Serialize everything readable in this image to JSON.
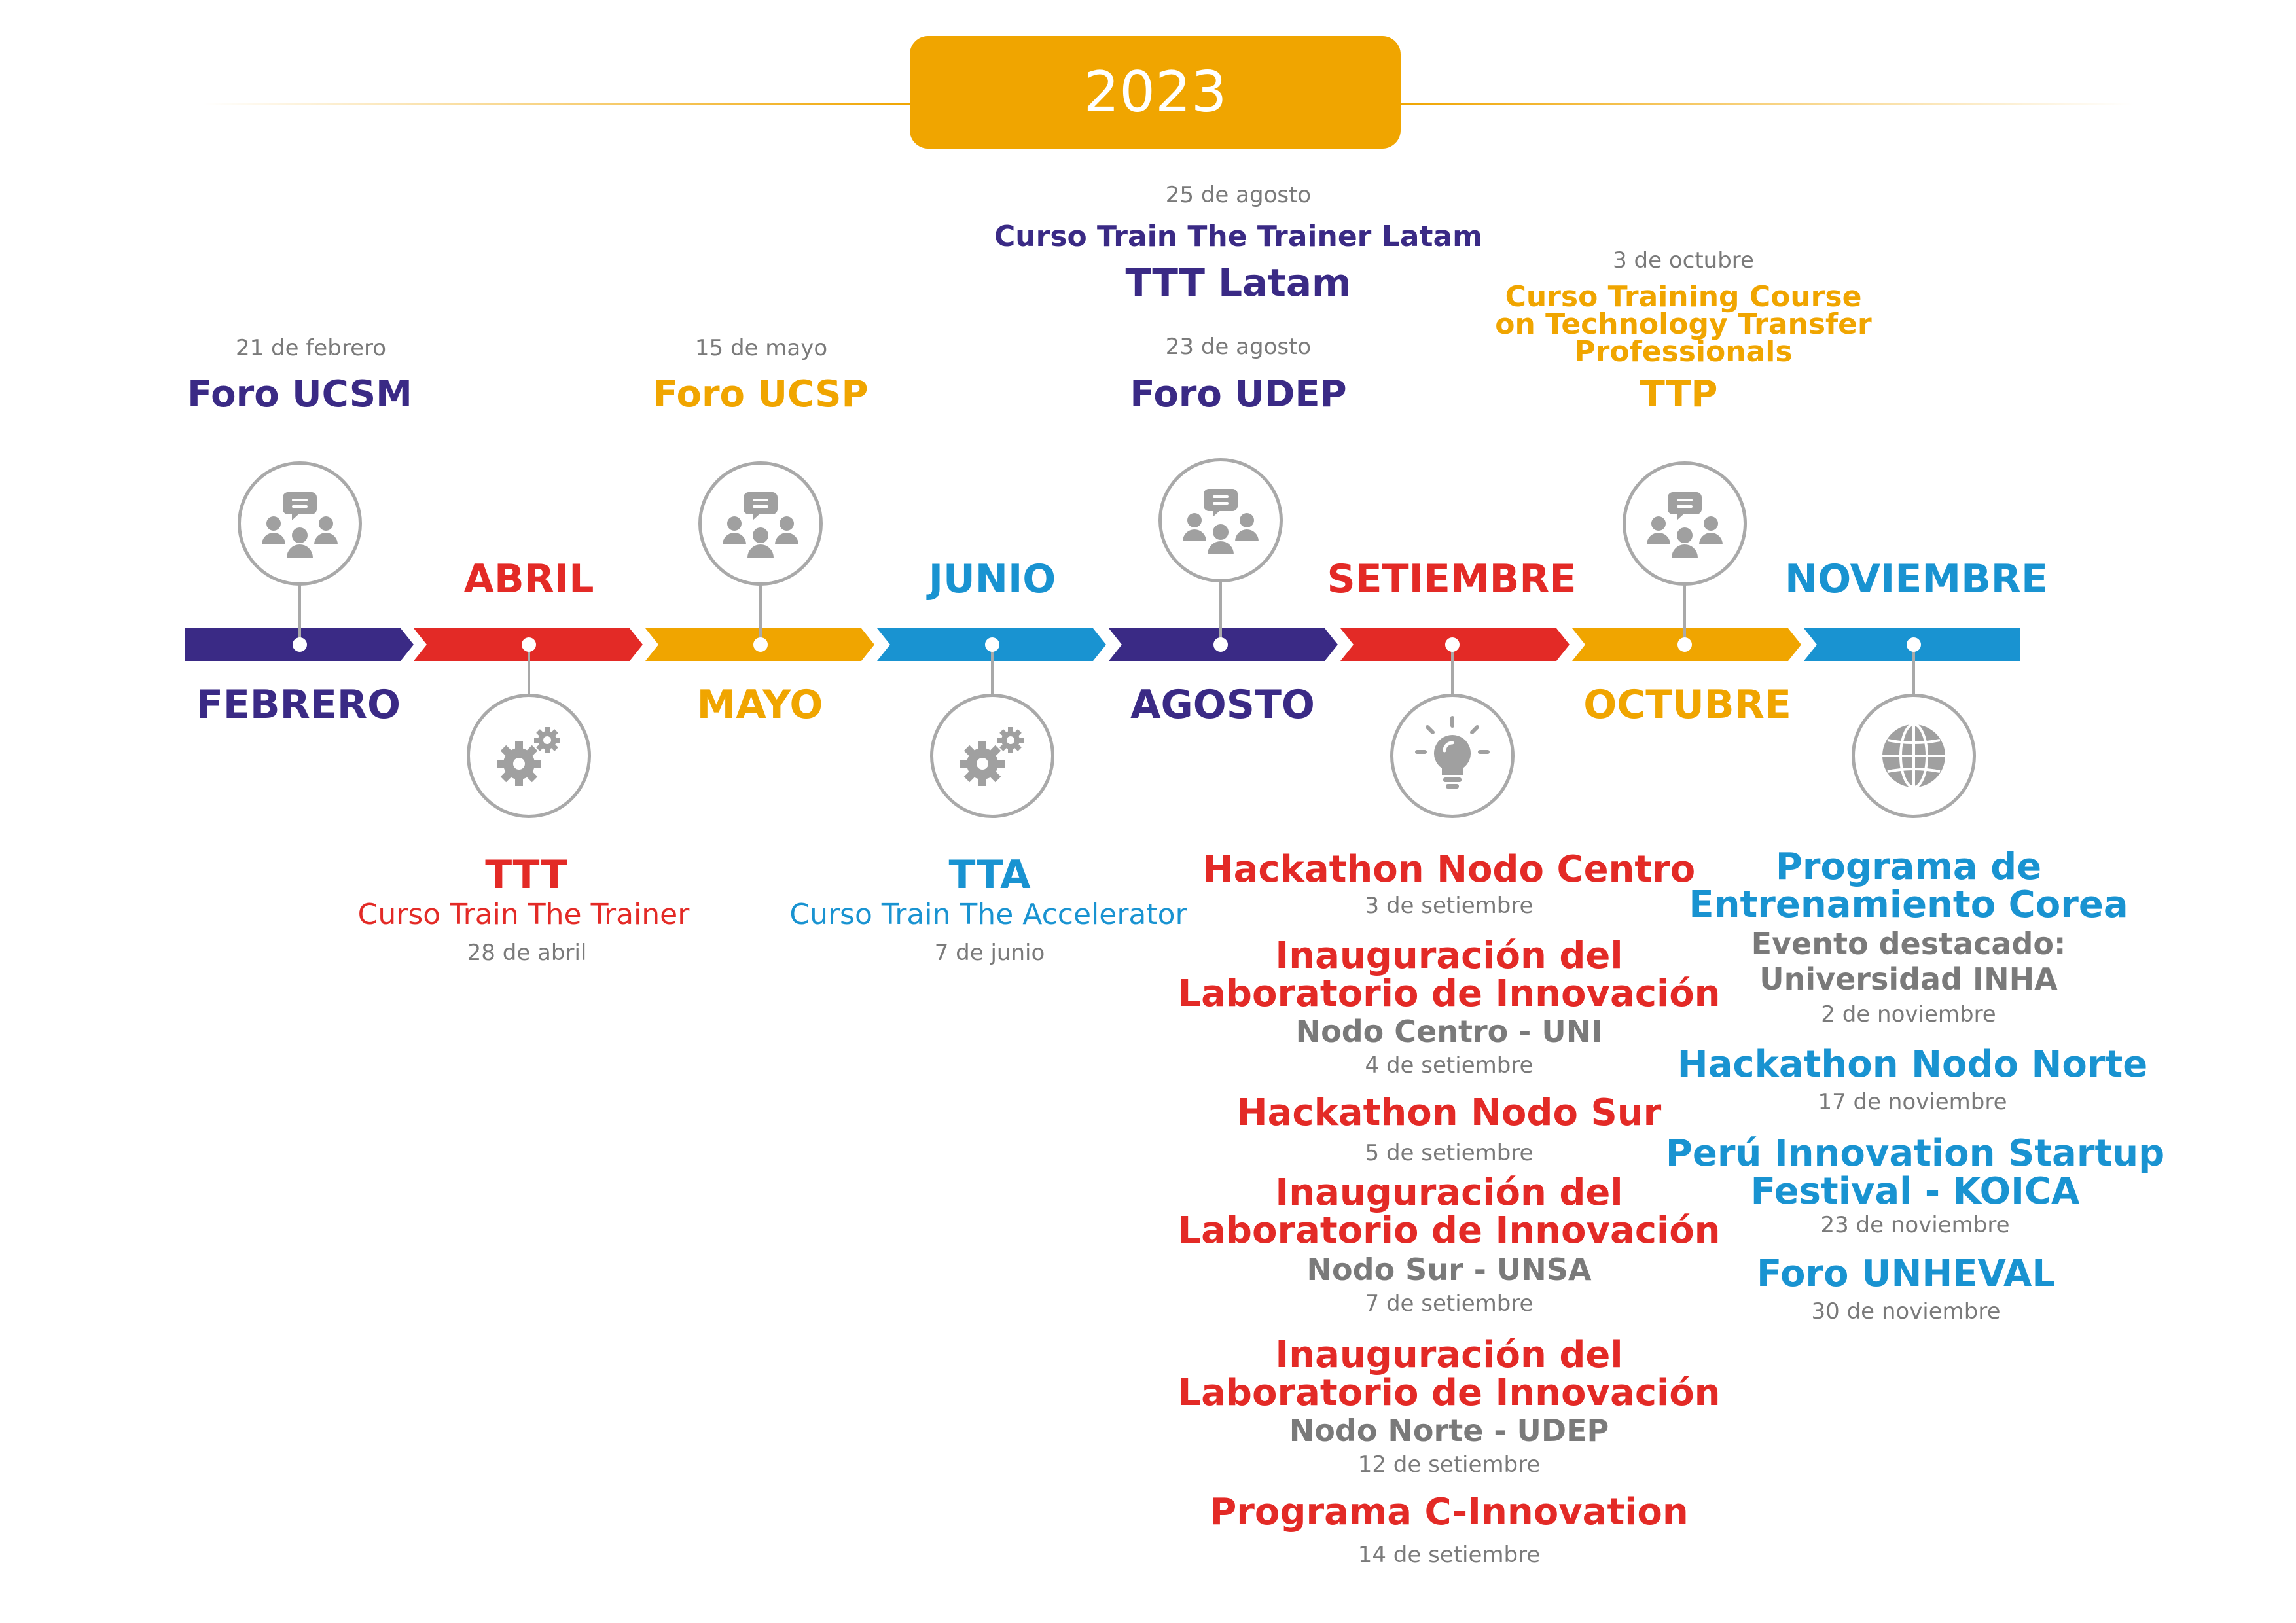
{
  "year": "2023",
  "colors": {
    "purple": "#3a2a85",
    "red": "#e32a26",
    "gold": "#f0a500",
    "blue": "#1993d1",
    "gray": "#7a7a7a"
  },
  "months": {
    "febrero": "FEBRERO",
    "abril": "ABRIL",
    "mayo": "MAYO",
    "junio": "JUNIO",
    "agosto": "AGOSTO",
    "setiembre": "SETIEMBRE",
    "octubre": "OCTUBRE",
    "noviembre": "NOVIEMBRE"
  },
  "top": {
    "febrero": {
      "date": "21 de febrero",
      "title": "Foro UCSM",
      "icon": "group-chat-icon"
    },
    "mayo": {
      "date": "15 de mayo",
      "title": "Foro UCSP",
      "icon": "group-chat-icon"
    },
    "agosto": {
      "ttt_date": "25 de agosto",
      "ttt_course": "Curso Train The Trainer Latam",
      "ttt_title": "TTT Latam",
      "date": "23 de agosto",
      "title": "Foro UDEP",
      "icon": "group-chat-icon"
    },
    "octubre": {
      "date": "3 de octubre",
      "course_line1": "Curso Training Course",
      "course_line2": "on Technology Transfer",
      "course_line3": "Professionals",
      "title": "TTP",
      "icon": "group-chat-icon"
    }
  },
  "bottom": {
    "abril": {
      "title": "TTT",
      "course": "Curso Train The Trainer",
      "date": "28 de abril",
      "icon": "gears-icon"
    },
    "junio": {
      "title": "TTA",
      "course": "Curso Train The Accelerator",
      "date": "7 de junio",
      "icon": "gears-icon"
    },
    "setiembre": {
      "icon": "lightbulb-icon",
      "e1_title": "Hackathon Nodo Centro",
      "e1_date": "3 de setiembre",
      "e2_line1": "Inauguración del",
      "e2_line2": "Laboratorio de Innovación",
      "e2_sub": "Nodo Centro - UNI",
      "e2_date": "4 de setiembre",
      "e3_title": "Hackathon Nodo Sur",
      "e3_date": "5 de setiembre",
      "e4_line1": "Inauguración del",
      "e4_line2": "Laboratorio de Innovación",
      "e4_sub": "Nodo Sur - UNSA",
      "e4_date": "7 de setiembre",
      "e5_line1": "Inauguración del",
      "e5_line2": "Laboratorio de Innovación",
      "e5_sub": "Nodo Norte - UDEP",
      "e5_date": "12 de setiembre",
      "e6_title": "Programa C-Innovation",
      "e6_date": "14 de setiembre"
    },
    "noviembre": {
      "icon": "globe-icon",
      "e1_line1": "Programa de",
      "e1_line2": "Entrenamiento Corea",
      "e1_sub1": "Evento destacado:",
      "e1_sub2": "Universidad INHA",
      "e1_date": "2 de noviembre",
      "e2_title": "Hackathon Nodo Norte",
      "e2_date": "17 de noviembre",
      "e3_line1": "Perú Innovation Startup",
      "e3_line2": "Festival - KOICA",
      "e3_date": "23 de noviembre",
      "e4_title": "Foro UNHEVAL",
      "e4_date": "30 de noviembre"
    }
  }
}
